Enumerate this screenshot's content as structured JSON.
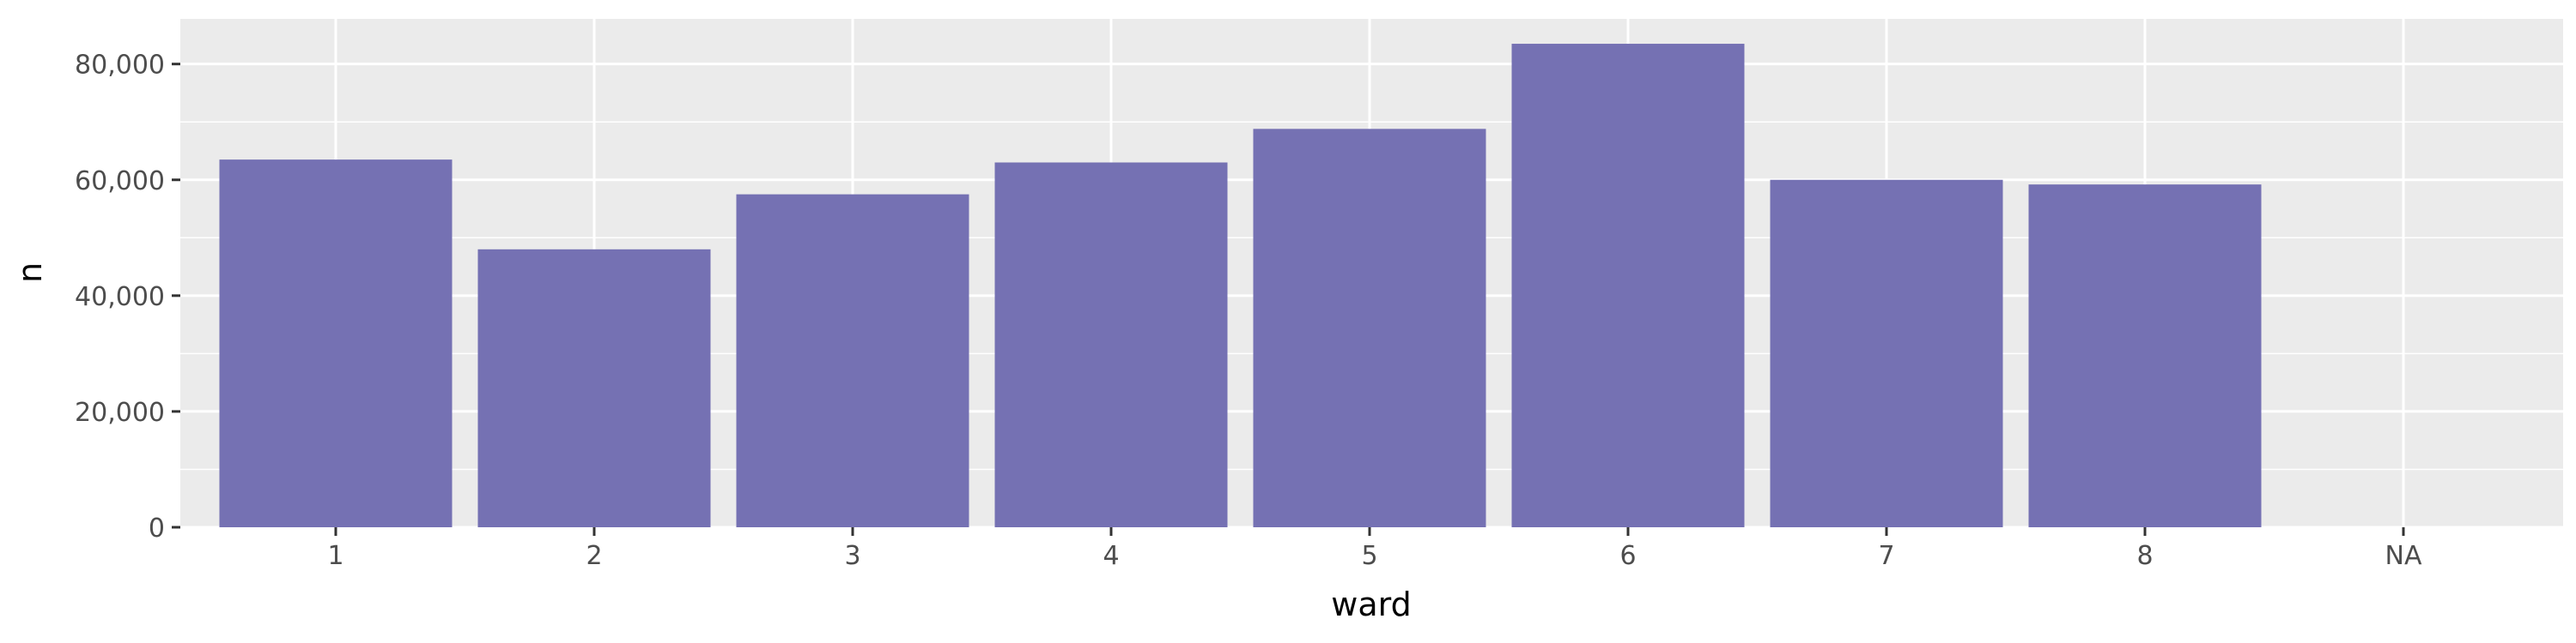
{
  "chart_data": {
    "type": "bar",
    "title": "",
    "xlabel": "ward",
    "ylabel": "n",
    "categories": [
      "1",
      "2",
      "3",
      "4",
      "5",
      "6",
      "7",
      "8",
      "NA"
    ],
    "values": [
      63500,
      48000,
      57500,
      63000,
      68800,
      83500,
      60000,
      59200,
      null
    ],
    "ylim": [
      0,
      87800
    ],
    "yticks": [
      0,
      20000,
      40000,
      60000,
      80000
    ],
    "ytick_labels": [
      "0",
      "20,000",
      "40,000",
      "60,000",
      "80,000"
    ],
    "grid": true,
    "legend": "none",
    "colors": {
      "bar": "#7571b3",
      "panel": "#ebebeb",
      "grid": "#ffffff"
    }
  }
}
